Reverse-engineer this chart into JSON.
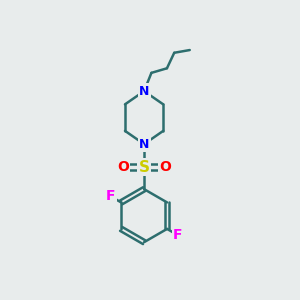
{
  "background_color": "#e8ecec",
  "bond_color": "#2d6e6e",
  "nitrogen_color": "#0000ff",
  "sulfur_color": "#cccc00",
  "oxygen_color": "#ff0000",
  "fluorine_color": "#ff00ff",
  "line_width": 1.8,
  "fig_size": [
    3.0,
    3.0
  ],
  "dpi": 100,
  "xlim": [
    0,
    10
  ],
  "ylim": [
    0,
    10
  ]
}
